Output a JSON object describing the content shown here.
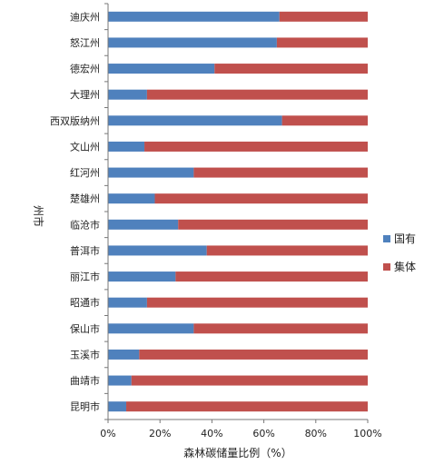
{
  "chart_data": {
    "type": "bar",
    "orientation": "horizontal",
    "stacked": true,
    "title": "",
    "xlabel": "森林碳储量比例（%）",
    "ylabel": "州市",
    "xlim": [
      0,
      100
    ],
    "xticks": [
      "0%",
      "20%",
      "40%",
      "60%",
      "80%",
      "100%"
    ],
    "categories": [
      "迪庆州",
      "怒江州",
      "德宏州",
      "大理州",
      "西双版纳州",
      "文山州",
      "红河州",
      "楚雄州",
      "临沧市",
      "普洱市",
      "丽江市",
      "昭通市",
      "保山市",
      "玉溪市",
      "曲靖市",
      "昆明市"
    ],
    "series": [
      {
        "name": "国有",
        "color": "#4f81bd",
        "values": [
          66,
          65,
          41,
          15,
          67,
          14,
          33,
          18,
          27,
          38,
          26,
          15,
          33,
          12,
          9,
          7
        ]
      },
      {
        "name": "集体",
        "color": "#c0504d",
        "values": [
          34,
          35,
          59,
          85,
          33,
          86,
          67,
          82,
          73,
          62,
          74,
          85,
          67,
          88,
          91,
          93
        ]
      }
    ],
    "legend": "right",
    "grid": false
  }
}
